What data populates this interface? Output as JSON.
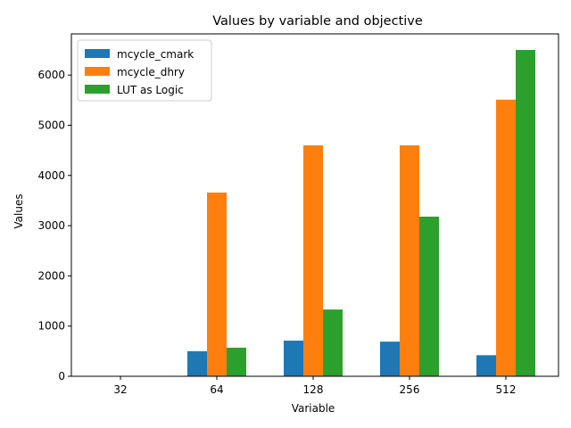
{
  "chart_data": {
    "type": "bar",
    "title": "Values by variable and objective",
    "xlabel": "Variable",
    "ylabel": "Values",
    "categories": [
      "32",
      "64",
      "128",
      "256",
      "512"
    ],
    "ylim": [
      0,
      6820
    ],
    "yticks": [
      0,
      1000,
      2000,
      3000,
      4000,
      5000,
      6000
    ],
    "legend": "top-left",
    "grid": false,
    "series": [
      {
        "name": "mcycle_cmark",
        "color": "#1f77b4",
        "values": [
          0,
          500,
          710,
          690,
          420
        ]
      },
      {
        "name": "mcycle_dhry",
        "color": "#ff7f0e",
        "values": [
          0,
          3660,
          4600,
          4600,
          5510
        ]
      },
      {
        "name": "LUT as Logic",
        "color": "#2ca02c",
        "values": [
          0,
          570,
          1330,
          3180,
          6500
        ]
      }
    ]
  }
}
